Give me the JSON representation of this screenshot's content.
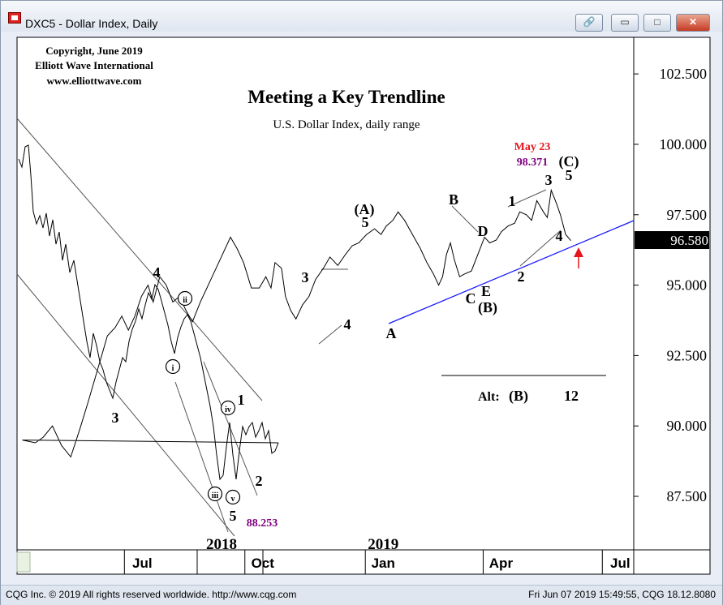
{
  "window": {
    "title": "DXC5 - Dollar Index, Daily",
    "buttons": {
      "link": "🔗",
      "minimize": "▭",
      "maximize": "□",
      "close": "✕"
    }
  },
  "header": {
    "copyright": [
      "Copyright, June 2019",
      "Elliott Wave International",
      "www.elliottwave.com"
    ]
  },
  "statusbar": {
    "left": "CQG Inc. © 2019 All rights reserved worldwide. http://www.cqg.com",
    "right": "Fri Jun 07 2019 15:49:55, CQG 18.12.8080"
  },
  "colors": {
    "price": "#000000",
    "trendline": "#1a1aff",
    "channel": "#555555",
    "annotation_red": "#e8141c",
    "annotation_purple": "#800080",
    "price_box": "#000000",
    "panel_bg": "#ffffff",
    "axis_bg": "#ffffff"
  },
  "chart_data": {
    "type": "line",
    "title": "Meeting a Key Trendline",
    "subtitle": "U.S. Dollar Index, daily range",
    "xlabel": "",
    "ylabel": "",
    "x_range": [
      "2018-04-10",
      "2019-07-25"
    ],
    "ylim": [
      85.6,
      103.8
    ],
    "y_ticks": [
      87.5,
      90.0,
      92.5,
      95.0,
      97.5,
      100.0,
      102.5
    ],
    "y_tick_labels": [
      "87.500",
      "90.000",
      "92.500",
      "95.000",
      "97.500",
      "100.000",
      "102.500"
    ],
    "x_ticks": [
      {
        "date": "2018-07-01",
        "label": "Jul"
      },
      {
        "date": "2018-10-01",
        "label": "Oct"
      },
      {
        "date": "2019-01-01",
        "label": "Jan"
      },
      {
        "date": "2019-04-01",
        "label": "Apr"
      },
      {
        "date": "2019-07-01",
        "label": "Jul"
      }
    ],
    "year_labels": [
      {
        "date": "2019-01-01",
        "label": "2019"
      }
    ],
    "first_year_label": {
      "label": "2018"
    },
    "last_price": 96.58,
    "last_price_label": "96.580",
    "series": [
      {
        "values": [
          [
            "2018-04-14",
            89.5
          ],
          [
            "2018-04-24",
            89.4
          ],
          [
            "2018-04-30",
            89.6
          ],
          [
            "2018-05-07",
            90.0
          ],
          [
            "2018-05-14",
            89.3
          ],
          [
            "2018-05-21",
            88.9
          ],
          [
            "2018-05-28",
            89.9
          ],
          [
            "2018-06-03",
            90.8
          ],
          [
            "2018-06-08",
            91.6
          ],
          [
            "2018-06-13",
            92.4
          ],
          [
            "2018-06-18",
            93.2
          ],
          [
            "2018-06-24",
            93.5
          ],
          [
            "2018-06-29",
            93.9
          ],
          [
            "2018-07-04",
            93.4
          ],
          [
            "2018-07-09",
            93.9
          ],
          [
            "2018-07-14",
            94.6
          ],
          [
            "2018-07-19",
            95.0
          ],
          [
            "2018-07-23",
            94.4
          ],
          [
            "2018-07-28",
            95.3
          ],
          [
            "2018-08-02",
            95.0
          ],
          [
            "2018-08-07",
            94.4
          ],
          [
            "2018-08-12",
            94.6
          ],
          [
            "2018-08-17",
            94.1
          ],
          [
            "2018-08-22",
            93.7
          ],
          [
            "2018-08-28",
            94.4
          ],
          [
            "2018-09-03",
            95.0
          ],
          [
            "2018-09-08",
            95.5
          ],
          [
            "2018-09-14",
            96.1
          ],
          [
            "2018-09-20",
            96.7
          ],
          [
            "2018-09-25",
            96.3
          ],
          [
            "2018-09-30",
            95.8
          ],
          [
            "2018-10-06",
            94.9
          ],
          [
            "2018-10-12",
            94.9
          ],
          [
            "2018-10-17",
            95.3
          ],
          [
            "2018-10-21",
            94.9
          ],
          [
            "2018-10-24",
            95.8
          ],
          [
            "2018-10-29",
            95.6
          ],
          [
            "2018-11-01",
            94.6
          ],
          [
            "2018-11-05",
            94.1
          ],
          [
            "2018-11-09",
            93.8
          ],
          [
            "2018-11-14",
            94.3
          ],
          [
            "2018-11-19",
            94.6
          ],
          [
            "2018-11-24",
            95.2
          ],
          [
            "2018-11-30",
            95.6
          ],
          [
            "2018-12-05",
            96.0
          ],
          [
            "2018-12-11",
            95.7
          ],
          [
            "2018-12-17",
            96.1
          ],
          [
            "2018-12-22",
            96.4
          ],
          [
            "2018-12-27",
            96.5
          ],
          [
            "2019-01-02",
            96.8
          ],
          [
            "2019-01-08",
            97.0
          ],
          [
            "2019-01-13",
            96.8
          ],
          [
            "2019-01-17",
            97.1
          ],
          [
            "2019-01-22",
            97.3
          ],
          [
            "2019-01-26",
            97.6
          ],
          [
            "2019-01-31",
            97.3
          ],
          [
            "2019-02-06",
            96.8
          ],
          [
            "2019-02-12",
            96.3
          ],
          [
            "2019-02-17",
            95.8
          ],
          [
            "2019-02-22",
            95.4
          ],
          [
            "2019-02-26",
            95.0
          ],
          [
            "2019-03-01",
            95.3
          ],
          [
            "2019-03-04",
            96.1
          ],
          [
            "2019-03-07",
            96.5
          ],
          [
            "2019-03-10",
            95.9
          ],
          [
            "2019-03-14",
            95.3
          ],
          [
            "2019-03-18",
            95.4
          ],
          [
            "2019-03-23",
            95.5
          ],
          [
            "2019-03-28",
            96.1
          ],
          [
            "2019-04-02",
            96.7
          ],
          [
            "2019-04-06",
            96.5
          ],
          [
            "2019-04-11",
            96.6
          ],
          [
            "2019-04-15",
            96.9
          ],
          [
            "2019-04-20",
            97.1
          ],
          [
            "2019-04-25",
            97.2
          ],
          [
            "2019-04-29",
            97.6
          ],
          [
            "2019-05-04",
            97.5
          ],
          [
            "2019-05-08",
            97.3
          ],
          [
            "2019-05-12",
            98.0
          ],
          [
            "2019-05-17",
            97.6
          ],
          [
            "2019-05-20",
            97.4
          ],
          [
            "2019-05-23",
            98.37
          ],
          [
            "2019-05-27",
            97.9
          ],
          [
            "2019-05-30",
            97.5
          ],
          [
            "2019-06-03",
            96.8
          ],
          [
            "2019-06-07",
            96.58
          ]
        ]
      }
    ],
    "annotations": [
      {
        "text": "1",
        "date": "2019-01-01",
        "y": 97.7
      },
      {
        "text": "2",
        "date": "2019-01-01",
        "y": 95.6
      },
      {
        "text": "3",
        "date": "2019-01-01",
        "y": 98.3
      },
      {
        "text": "4",
        "date": "2019-01-01",
        "y": 96.6
      },
      {
        "text": "5",
        "date": "2019-01-01",
        "y": 98.7
      },
      {
        "text": "May 23",
        "date": "2019-01-01",
        "y": 100.1,
        "color": "annotation_red"
      },
      {
        "text": "98.371",
        "date": "2019-01-01",
        "y": 99.5,
        "color": "annotation_purple"
      },
      {
        "text": "(C)",
        "date": "2019-01-01",
        "y": 99.4
      },
      {
        "text": "(A)",
        "date": "2018-10-01",
        "y": 97.6
      },
      {
        "text": "5",
        "date": "2018-10-01",
        "y": 97.0
      },
      {
        "text": "B",
        "date": "2018-10-01",
        "y": 98.1
      },
      {
        "text": "D",
        "date": "2018-10-01",
        "y": 96.8
      },
      {
        "text": "C",
        "date": "2018-10-01",
        "y": 94.6
      },
      {
        "text": "E",
        "date": "2018-10-01",
        "y": 94.8
      },
      {
        "text": "(B)",
        "date": "2018-10-01",
        "y": 94.3
      },
      {
        "text": "A",
        "date": "2018-10-01",
        "y": 93.4
      },
      {
        "text": "3",
        "date": "2018-07-01",
        "y": 95.2
      },
      {
        "text": "4",
        "date": "2018-07-01",
        "y": 93.5
      },
      {
        "text": "1",
        "date": "2018-04-14",
        "y": 91.2
      },
      {
        "text": "2",
        "date": "2018-04-14",
        "y": 88.5
      },
      {
        "text": "3",
        "date": "2018-04-14",
        "y": 90.8
      },
      {
        "text": "4",
        "date": "2018-04-14",
        "y": 96.1
      },
      {
        "text": "5",
        "date": "2018-04-14",
        "y": 87.7
      },
      {
        "text": "88.253",
        "date": "2018-04-14",
        "y": 87.2,
        "color": "annotation_purple"
      },
      {
        "text": "i",
        "date": "2018-04-14",
        "y": 92.0,
        "circled": true
      },
      {
        "text": "ii",
        "date": "2018-04-14",
        "y": 94.6,
        "circled": true
      },
      {
        "text": "iii",
        "date": "2018-04-14",
        "y": 88.3,
        "circled": true
      },
      {
        "text": "iv",
        "date": "2018-04-14",
        "y": 90.7,
        "circled": true
      },
      {
        "text": "v",
        "date": "2018-04-14",
        "y": 88.2,
        "circled": true
      }
    ],
    "alt_label": {
      "text": "Alt:",
      "wave": "(B)",
      "ref": "12"
    }
  }
}
